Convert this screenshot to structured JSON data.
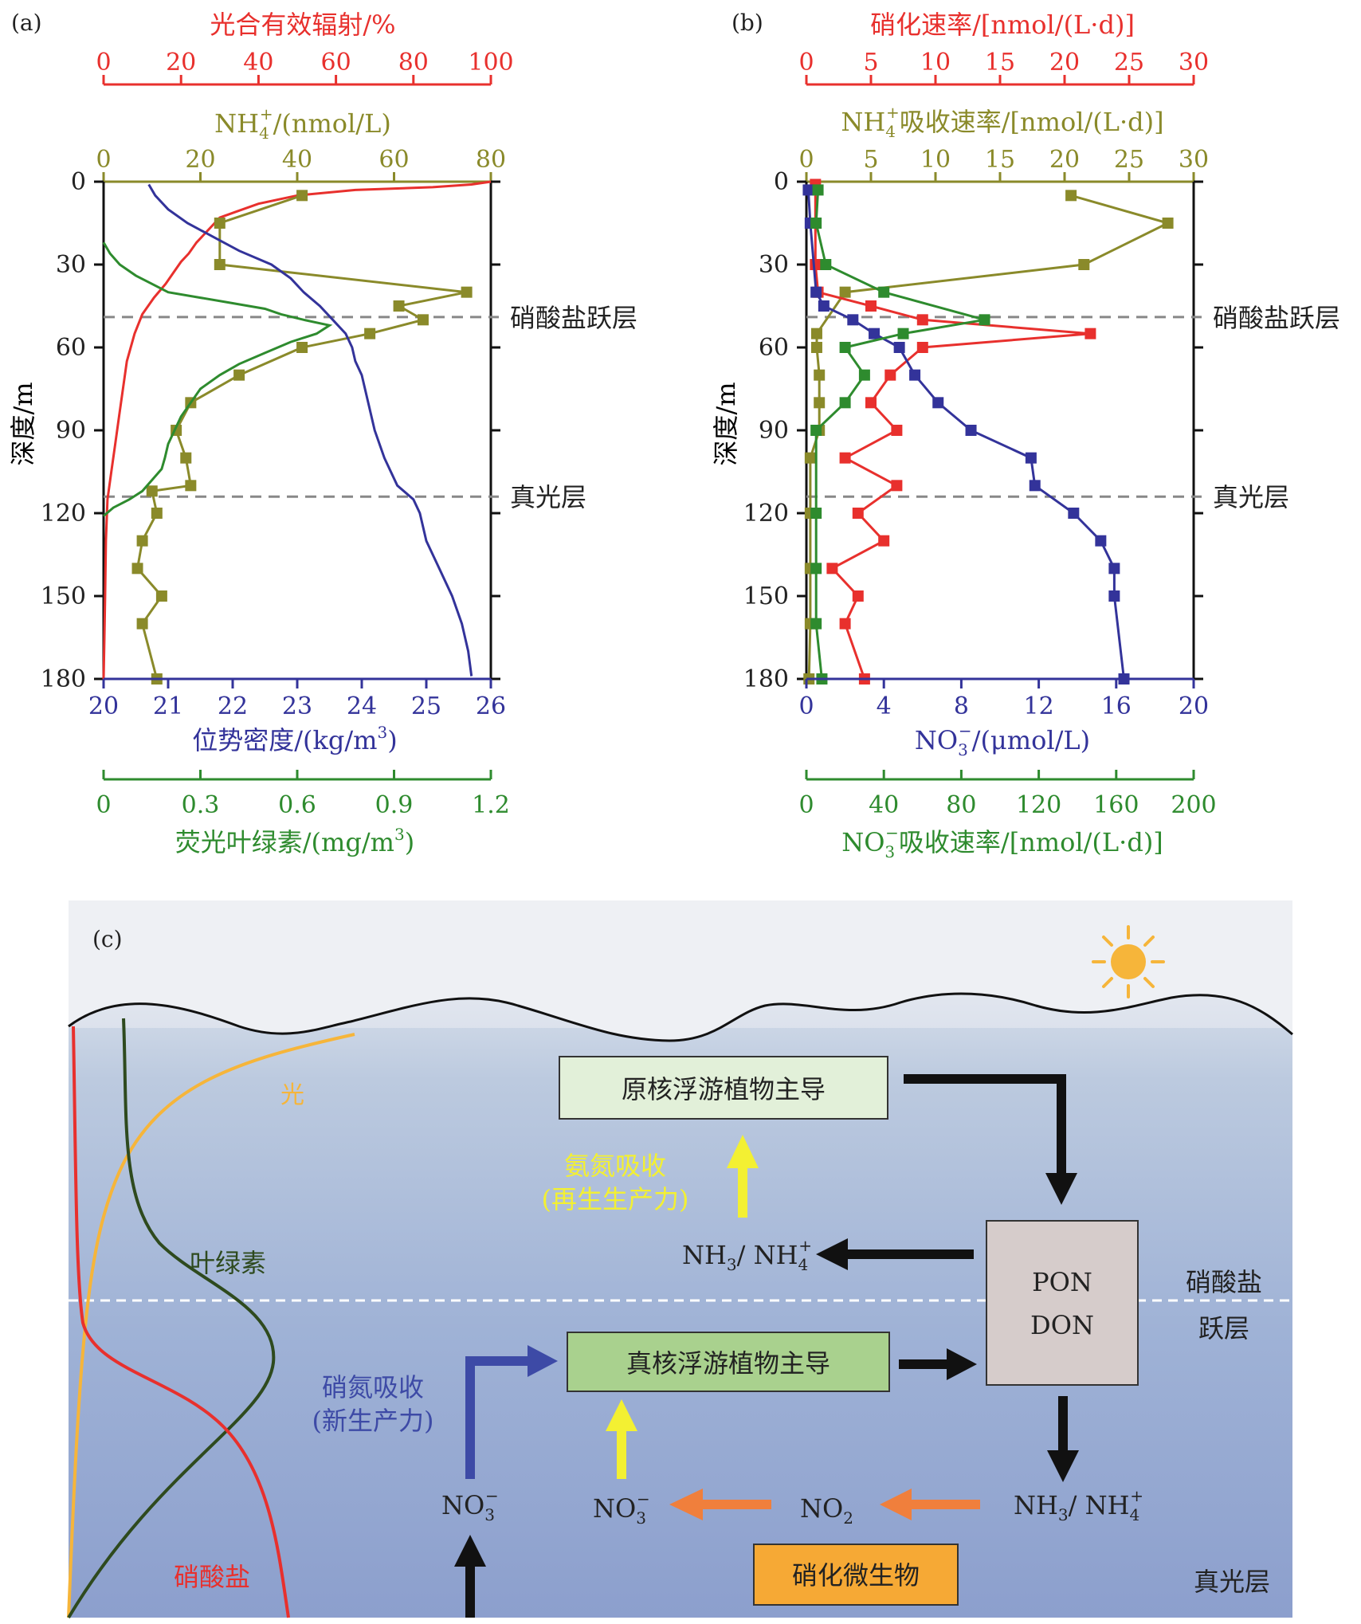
{
  "colors": {
    "red": "#e8302d",
    "olive": "#8a8a2a",
    "blue": "#33339a",
    "green": "#2e8b2e",
    "dark_green": "#2e4a1e",
    "light": "#f6b53a",
    "arrow_yellow": "#f3f032",
    "arrow_orange": "#f07f3c",
    "arrow_blue": "#3d4aa6",
    "nitrify_box": "#f6a935",
    "pro_box": "#e2f0d9",
    "euk_box": "#a9d18e",
    "pon_box": "#d6cccb"
  },
  "panel_a": {
    "label": "(a)",
    "axes": {
      "top_red": {
        "label": "光合有效辐射/%",
        "range": [
          0,
          100
        ],
        "ticks": [
          "0",
          "20",
          "40",
          "60",
          "80",
          "100"
        ]
      },
      "top_olive": {
        "label_main": "NH",
        "label_sub": "4",
        "label_sup": "+",
        "label_tail": "/(nmol/L)",
        "range": [
          0,
          80
        ],
        "ticks": [
          "0",
          "20",
          "40",
          "60",
          "80"
        ]
      },
      "bottom_blue": {
        "label_main": "位势密度/(kg/m",
        "label_sup": "3",
        "label_tail": ")",
        "range": [
          20,
          26
        ],
        "ticks": [
          "20",
          "21",
          "22",
          "23",
          "24",
          "25",
          "26"
        ]
      },
      "bottom_green": {
        "label_main": "荧光叶绿素/(mg/m",
        "label_sup": "3",
        "label_tail": ")",
        "range": [
          0,
          1.2
        ],
        "ticks": [
          "0",
          "0.3",
          "0.6",
          "0.9",
          "1.2"
        ]
      },
      "y": {
        "label": "深度/m",
        "range": [
          0,
          180
        ],
        "ticks": [
          "0",
          "30",
          "60",
          "90",
          "120",
          "150",
          "180"
        ]
      }
    },
    "layers": [
      {
        "name": "硝酸盐跃层",
        "depth": 49
      },
      {
        "name": "真光层",
        "depth": 114
      }
    ]
  },
  "panel_b": {
    "label": "(b)",
    "axes": {
      "top_red": {
        "label": "硝化速率/[nmol/(L·d)]",
        "range": [
          0,
          30
        ],
        "ticks": [
          "0",
          "5",
          "10",
          "15",
          "20",
          "25",
          "30"
        ]
      },
      "top_olive": {
        "label_main": "NH",
        "label_sub": "4",
        "label_sup": "+",
        "label_tail": "吸收速率/[nmol/(L·d)]",
        "range": [
          0,
          30
        ],
        "ticks": [
          "0",
          "5",
          "10",
          "15",
          "20",
          "25",
          "30"
        ]
      },
      "bottom_blue": {
        "label_main": "NO",
        "label_sub": "3",
        "label_sup": "−",
        "label_tail": "/(μmol/L)",
        "range": [
          0,
          20
        ],
        "ticks": [
          "0",
          "4",
          "8",
          "12",
          "16",
          "20"
        ]
      },
      "bottom_green": {
        "label_main": "NO",
        "label_sub": "3",
        "label_sup": "−",
        "label_tail": "吸收速率/[nmol/(L·d)]",
        "range": [
          0,
          200
        ],
        "ticks": [
          "0",
          "40",
          "80",
          "120",
          "160",
          "200"
        ]
      },
      "y": {
        "label": "深度/m",
        "range": [
          0,
          180
        ],
        "ticks": [
          "0",
          "30",
          "60",
          "90",
          "120",
          "150",
          "180"
        ]
      }
    },
    "layers": [
      {
        "name": "硝酸盐跃层",
        "depth": 49
      },
      {
        "name": "真光层",
        "depth": 114
      }
    ]
  },
  "chart_data": [
    {
      "type": "line",
      "panel": "a",
      "ylim": [
        180,
        0
      ],
      "series": [
        {
          "name": "光合有效辐射",
          "axis": "top_red",
          "marker": "none",
          "x": [
            100,
            95,
            85,
            65,
            50,
            40,
            34,
            30,
            28,
            26,
            24,
            22,
            20,
            18,
            16,
            13,
            10,
            8,
            6,
            5,
            4,
            3,
            2,
            1,
            0.6,
            0.4,
            0.2,
            0
          ],
          "y": [
            0,
            1,
            2,
            3,
            5,
            8,
            11,
            13,
            16,
            19,
            22,
            26,
            29,
            33,
            37,
            42,
            48,
            55,
            65,
            75,
            85,
            95,
            105,
            115,
            130,
            150,
            165,
            180
          ]
        },
        {
          "name": "NH4+",
          "axis": "top_olive",
          "marker": "square",
          "x": [
            41,
            24,
            24,
            75,
            61,
            66,
            55,
            41,
            28,
            18,
            15,
            17,
            18,
            10,
            11,
            8,
            7,
            12,
            8,
            11
          ],
          "y": [
            5,
            15,
            30,
            40,
            45,
            50,
            55,
            60,
            70,
            80,
            90,
            100,
            110,
            112,
            120,
            130,
            140,
            150,
            160,
            180
          ]
        },
        {
          "name": "位势密度",
          "axis": "bottom_blue",
          "marker": "none",
          "x": [
            20.7,
            20.8,
            21.0,
            21.3,
            21.7,
            22.1,
            22.6,
            22.9,
            23.1,
            23.35,
            23.55,
            23.75,
            23.85,
            23.9,
            24.0,
            24.1,
            24.2,
            24.35,
            24.55,
            24.8,
            24.9,
            25.0,
            25.2,
            25.4,
            25.55,
            25.65,
            25.7
          ],
          "y": [
            1,
            5,
            10,
            15,
            20,
            25,
            30,
            35,
            40,
            45,
            50,
            55,
            60,
            65,
            70,
            80,
            90,
            100,
            110,
            115,
            120,
            130,
            140,
            150,
            160,
            170,
            179
          ]
        },
        {
          "name": "荧光叶绿素",
          "axis": "bottom_green",
          "marker": "none",
          "x": [
            0,
            0.02,
            0.05,
            0.1,
            0.15,
            0.2,
            0.3,
            0.4,
            0.5,
            0.55,
            0.62,
            0.7,
            0.66,
            0.58,
            0.5,
            0.42,
            0.36,
            0.3,
            0.27,
            0.24,
            0.22,
            0.2,
            0.19,
            0.18,
            0.15,
            0.12,
            0.08,
            0.03,
            0
          ],
          "y": [
            22,
            26,
            30,
            34,
            37,
            40,
            42,
            44,
            46,
            48,
            50,
            52,
            55,
            58,
            62,
            66,
            70,
            75,
            80,
            85,
            90,
            95,
            100,
            104,
            108,
            112,
            115,
            118,
            121
          ]
        }
      ]
    },
    {
      "type": "line",
      "panel": "b",
      "ylim": [
        180,
        0
      ],
      "series": [
        {
          "name": "NH4+吸收速率",
          "axis": "top_olive",
          "marker": "square",
          "x": [
            20.5,
            28,
            21.5,
            3,
            0.8,
            0.8,
            1,
            1,
            1,
            0.3,
            0.3,
            0.3,
            0.3,
            0.2
          ],
          "y": [
            5,
            15,
            30,
            40,
            55,
            60,
            70,
            80,
            90,
            100,
            120,
            140,
            160,
            180
          ]
        },
        {
          "name": "硝化速率",
          "axis": "top_red",
          "marker": "square",
          "x": [
            0.7,
            0.7,
            0.7,
            0.9,
            5,
            9,
            22,
            9,
            6.5,
            5,
            7,
            3,
            7,
            4,
            6,
            2,
            4,
            3,
            4.5
          ],
          "y": [
            1,
            15,
            30,
            40,
            45,
            50,
            55,
            60,
            70,
            80,
            90,
            100,
            110,
            120,
            130,
            140,
            150,
            160,
            180
          ]
        },
        {
          "name": "NO3-浓度",
          "axis": "bottom_blue",
          "marker": "square",
          "x": [
            0.1,
            0.2,
            0.5,
            0.9,
            2.4,
            3.5,
            4.8,
            5.6,
            6.8,
            8.5,
            11.6,
            11.8,
            13.8,
            15.2,
            15.9,
            15.9,
            16.4
          ],
          "y": [
            3,
            15,
            40,
            45,
            50,
            55,
            60,
            70,
            80,
            90,
            100,
            110,
            120,
            130,
            140,
            150,
            180
          ]
        },
        {
          "name": "NO3-吸收速率",
          "axis": "bottom_green",
          "marker": "square",
          "x": [
            6,
            5,
            10,
            40,
            92,
            50,
            20,
            30,
            20,
            5,
            5,
            5,
            5,
            8
          ],
          "y": [
            3,
            15,
            30,
            40,
            50,
            55,
            60,
            70,
            80,
            90,
            120,
            140,
            160,
            180
          ]
        }
      ]
    }
  ],
  "panel_c": {
    "label": "(c)",
    "curve_labels": {
      "light": "光",
      "chlorophyll": "叶绿素",
      "nitrate": "硝酸盐"
    },
    "boxes": {
      "prokaryote": "原核浮游植物主导",
      "eukaryote": "真核浮游植物主导",
      "pon": "PON",
      "don": "DON",
      "nitrifier": "硝化微生物"
    },
    "ammonium_uptake": {
      "line1": "氨氮吸收",
      "line2": "(再生生产力)"
    },
    "nitrate_uptake": {
      "line1": "硝氮吸收",
      "line2": "(新生产力)"
    },
    "species": {
      "nh_upper": {
        "main": "NH",
        "sub": "3",
        "mid": "/ NH",
        "sub2": "4",
        "sup": "+"
      },
      "nh_lower": {
        "main": "NH",
        "sub": "3",
        "mid": "/ NH",
        "sub2": "4",
        "sup": "+"
      },
      "no3_left": {
        "main": "NO",
        "sub": "3",
        "sup": "−"
      },
      "no3_mid": {
        "main": "NO",
        "sub": "3",
        "sup": "−"
      },
      "no2": {
        "main": "NO",
        "sub": "2"
      }
    },
    "layer_labels": {
      "nitracline_line1": "硝酸盐",
      "nitracline_line2": "跃层",
      "euphotic": "真光层"
    }
  }
}
